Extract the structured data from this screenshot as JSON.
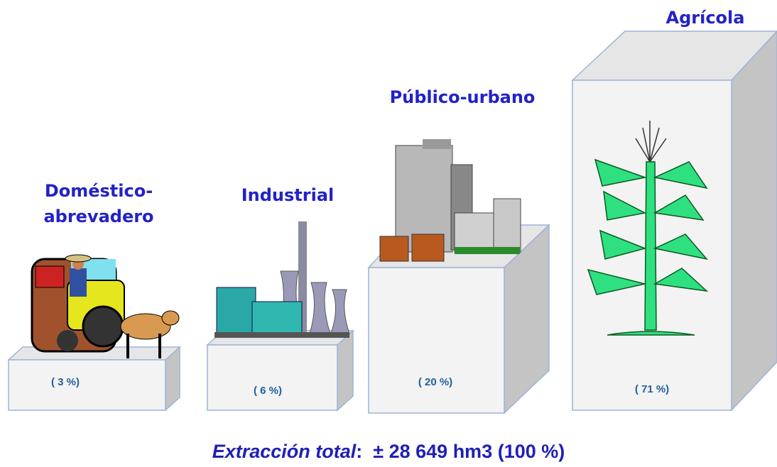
{
  "nodes": [
    {
      "label": "Doméstico-\nabrevadero",
      "value_label": "( 3 %)"
    },
    {
      "label": "Industrial",
      "value_label": "( 6 %)"
    },
    {
      "label": "Público-urbano",
      "value_label": "( 20 %)"
    },
    {
      "label": "Agrícola",
      "value_label": "( 71 %)"
    }
  ],
  "footer": {
    "label": "Extracción total",
    "text": ":  ± 28 649 hm3 (100 %)"
  }
}
